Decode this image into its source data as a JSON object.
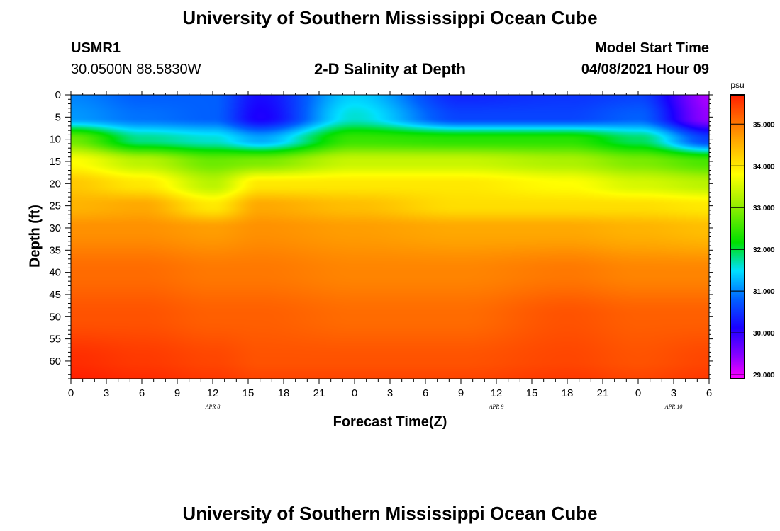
{
  "header": {
    "title": "University of Southern Mississippi Ocean Cube",
    "station_id": "USMR1",
    "station_coords": "30.0500N  88.5830W",
    "plot_title": "2-D Salinity at Depth",
    "model_label": "Model Start Time",
    "model_time": "04/08/2021 Hour 09"
  },
  "footer": {
    "title": "University of Southern Mississippi Ocean Cube"
  },
  "colors": {
    "background": "#ffffff",
    "axis": "#000000"
  },
  "chart_data": {
    "type": "heatmap",
    "title": "2-D Salinity at Depth",
    "xlabel": "Forecast Time(Z)",
    "ylabel": "Depth (ft)",
    "x_range_hours": [
      0,
      54
    ],
    "y_range_ft": [
      0,
      64
    ],
    "x_tick_labels": [
      "0",
      "3",
      "6",
      "9",
      "12",
      "15",
      "18",
      "21",
      "0",
      "3",
      "6",
      "9",
      "12",
      "15",
      "18",
      "21",
      "0",
      "3",
      "6"
    ],
    "x_tick_hours": [
      0,
      3,
      6,
      9,
      12,
      15,
      18,
      21,
      24,
      27,
      30,
      33,
      36,
      39,
      42,
      45,
      48,
      51,
      54
    ],
    "date_labels": [
      {
        "label": "APR 8",
        "hour": 12
      },
      {
        "label": "APR 9",
        "hour": 36
      },
      {
        "label": "APR 10",
        "hour": 51
      }
    ],
    "y_tick_labels": [
      "0",
      "5",
      "10",
      "15",
      "20",
      "25",
      "30",
      "35",
      "40",
      "45",
      "50",
      "55",
      "60"
    ],
    "y_tick_values": [
      0,
      5,
      10,
      15,
      20,
      25,
      30,
      35,
      40,
      45,
      50,
      55,
      60
    ],
    "colorbar": {
      "unit": "psu",
      "range": [
        28.9,
        35.7
      ],
      "tick_values": [
        29.0,
        30.0,
        31.0,
        32.0,
        33.0,
        34.0,
        35.0
      ],
      "tick_labels": [
        "29.000",
        "30.000",
        "31.000",
        "32.000",
        "33.000",
        "34.000",
        "35.000"
      ]
    },
    "columns_hours": [
      0,
      6,
      12,
      16,
      24,
      33,
      42,
      48,
      54
    ],
    "rows_depth_ft": [
      0,
      5,
      10,
      15,
      20,
      25,
      30,
      40,
      50,
      60,
      64
    ],
    "salinity_psu": [
      [
        31.0,
        30.8,
        30.8,
        30.2,
        31.4,
        30.4,
        30.5,
        30.6,
        29.3
      ],
      [
        31.1,
        30.9,
        30.8,
        30.1,
        31.6,
        30.6,
        30.6,
        30.8,
        29.4
      ],
      [
        32.8,
        31.8,
        31.6,
        31.2,
        32.5,
        32.4,
        32.4,
        31.9,
        30.6
      ],
      [
        33.8,
        33.3,
        32.8,
        32.9,
        33.4,
        33.4,
        33.2,
        32.9,
        32.6
      ],
      [
        34.3,
        34.0,
        33.3,
        34.0,
        34.0,
        34.0,
        33.8,
        33.5,
        33.3
      ],
      [
        34.5,
        34.6,
        34.0,
        34.6,
        34.4,
        34.1,
        34.1,
        34.1,
        34.0
      ],
      [
        34.8,
        34.8,
        34.7,
        34.8,
        34.7,
        34.6,
        34.6,
        34.5,
        34.4
      ],
      [
        35.1,
        35.1,
        35.0,
        35.0,
        34.9,
        34.9,
        35.0,
        34.9,
        34.9
      ],
      [
        35.3,
        35.3,
        35.2,
        35.2,
        35.1,
        35.1,
        35.3,
        35.2,
        35.2
      ],
      [
        35.6,
        35.5,
        35.4,
        35.3,
        35.3,
        35.3,
        35.4,
        35.3,
        35.4
      ],
      [
        35.7,
        35.6,
        35.5,
        35.4,
        35.4,
        35.4,
        35.5,
        35.4,
        35.5
      ]
    ]
  }
}
